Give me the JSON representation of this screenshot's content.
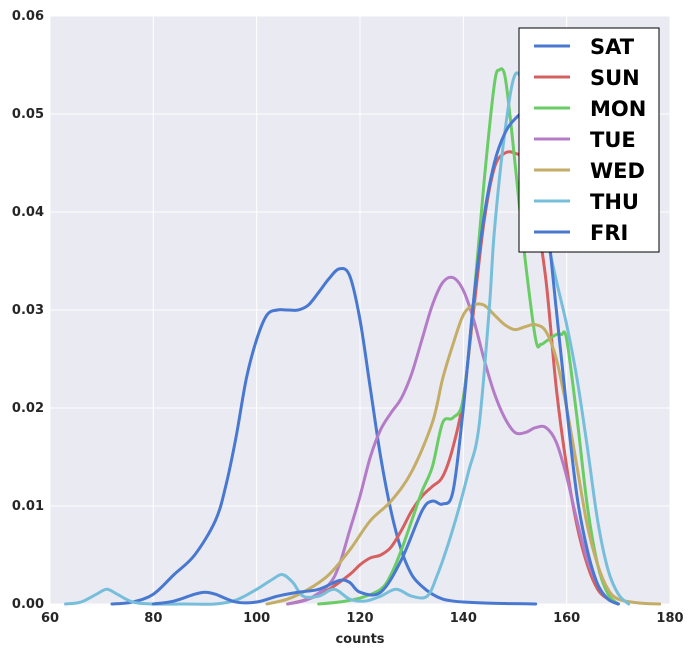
{
  "chart_data": {
    "type": "line",
    "title": "",
    "xlabel": "counts",
    "ylabel": "",
    "xlim": [
      60,
      180
    ],
    "ylim": [
      0,
      0.06
    ],
    "x_ticks": [
      60,
      80,
      100,
      120,
      140,
      160,
      180
    ],
    "y_ticks": [
      0.0,
      0.01,
      0.02,
      0.03,
      0.04,
      0.05,
      0.06
    ],
    "x_tick_labels": [
      "60",
      "80",
      "100",
      "120",
      "140",
      "160",
      "180"
    ],
    "y_tick_labels": [
      "0.00",
      "0.01",
      "0.02",
      "0.03",
      "0.04",
      "0.05",
      "0.06"
    ],
    "grid": true,
    "legend_position": "top-right",
    "series": [
      {
        "name": "SAT",
        "color": "#4878cf",
        "x": [
          72,
          76,
          80,
          84,
          88,
          92,
          94,
          96,
          98,
          100,
          102,
          104,
          106,
          108,
          110,
          112,
          114,
          116,
          118,
          120,
          122,
          124,
          126,
          128,
          130,
          132,
          134,
          136,
          138,
          140,
          144,
          148,
          152,
          154
        ],
        "y": [
          0.0,
          0.0002,
          0.001,
          0.003,
          0.005,
          0.0085,
          0.012,
          0.017,
          0.023,
          0.027,
          0.0295,
          0.03,
          0.03,
          0.03,
          0.0305,
          0.0318,
          0.0332,
          0.0342,
          0.0335,
          0.029,
          0.022,
          0.015,
          0.0095,
          0.0055,
          0.003,
          0.0018,
          0.001,
          0.0005,
          0.0003,
          0.0002,
          0.0001,
          5e-05,
          2e-05,
          0.0
        ]
      },
      {
        "name": "SUN",
        "color": "#d65f5f",
        "x": [
          106,
          110,
          114,
          118,
          120,
          122,
          124,
          126,
          128,
          130,
          132,
          134,
          136,
          138,
          140,
          142,
          144,
          146,
          148,
          150,
          152,
          154,
          156,
          158,
          160,
          162,
          164,
          166,
          168,
          170
        ],
        "y": [
          0.0,
          0.0005,
          0.0015,
          0.003,
          0.004,
          0.0047,
          0.005,
          0.0058,
          0.0075,
          0.0095,
          0.011,
          0.012,
          0.013,
          0.016,
          0.021,
          0.03,
          0.039,
          0.0445,
          0.046,
          0.046,
          0.045,
          0.04,
          0.033,
          0.022,
          0.014,
          0.008,
          0.004,
          0.0015,
          0.0005,
          0.0
        ]
      },
      {
        "name": "MON",
        "color": "#6acc65",
        "x": [
          112,
          116,
          120,
          124,
          126,
          128,
          130,
          132,
          134,
          136,
          138,
          140,
          142,
          144,
          146,
          147,
          148,
          149,
          150,
          152,
          154,
          155,
          156,
          158,
          159,
          160,
          162,
          164,
          166,
          168,
          170
        ],
        "y": [
          0.0,
          0.0002,
          0.0006,
          0.0015,
          0.003,
          0.0055,
          0.0085,
          0.0115,
          0.014,
          0.0185,
          0.019,
          0.021,
          0.031,
          0.043,
          0.053,
          0.0545,
          0.054,
          0.05,
          0.045,
          0.035,
          0.027,
          0.0265,
          0.0268,
          0.0275,
          0.0275,
          0.027,
          0.019,
          0.01,
          0.004,
          0.001,
          0.0
        ]
      },
      {
        "name": "TUE",
        "color": "#b47cc7",
        "x": [
          106,
          110,
          114,
          116,
          118,
          120,
          122,
          124,
          126,
          128,
          130,
          132,
          134,
          136,
          138,
          140,
          142,
          144,
          146,
          148,
          150,
          152,
          154,
          156,
          158,
          160,
          162,
          164,
          166,
          168,
          170
        ],
        "y": [
          0.0,
          0.0005,
          0.002,
          0.004,
          0.0075,
          0.011,
          0.015,
          0.0178,
          0.0195,
          0.021,
          0.0235,
          0.027,
          0.0305,
          0.0328,
          0.0333,
          0.032,
          0.029,
          0.025,
          0.0215,
          0.019,
          0.0175,
          0.0175,
          0.018,
          0.018,
          0.0165,
          0.013,
          0.0085,
          0.0045,
          0.002,
          0.0005,
          0.0
        ]
      },
      {
        "name": "WED",
        "color": "#c4ad66",
        "x": [
          102,
          106,
          110,
          114,
          118,
          122,
          126,
          130,
          134,
          136,
          138,
          140,
          142,
          144,
          146,
          148,
          150,
          152,
          154,
          156,
          158,
          160,
          162,
          164,
          166,
          168,
          170,
          174,
          178
        ],
        "y": [
          0.0,
          0.0005,
          0.0015,
          0.003,
          0.0055,
          0.0085,
          0.0105,
          0.0135,
          0.0185,
          0.023,
          0.0265,
          0.0295,
          0.0305,
          0.0305,
          0.0295,
          0.0285,
          0.028,
          0.0283,
          0.0285,
          0.0278,
          0.025,
          0.02,
          0.014,
          0.008,
          0.004,
          0.0015,
          0.0005,
          0.0001,
          0.0
        ]
      },
      {
        "name": "THU",
        "color": "#77bedb",
        "x": [
          63,
          66,
          69,
          71,
          73,
          76,
          80,
          86,
          92,
          96,
          100,
          103,
          105,
          107,
          109,
          112,
          115,
          118,
          121,
          124,
          127,
          130,
          133,
          135,
          137,
          139,
          141,
          143,
          145,
          146,
          148,
          150,
          152,
          154,
          156,
          158,
          160,
          162,
          164,
          166,
          168,
          170,
          172
        ],
        "y": [
          0.0,
          0.0002,
          0.001,
          0.0015,
          0.001,
          0.0002,
          0.0,
          0.0,
          0.0,
          0.0004,
          0.0015,
          0.0025,
          0.003,
          0.0022,
          0.0008,
          0.0008,
          0.0015,
          0.0005,
          0.0003,
          0.0008,
          0.0015,
          0.0008,
          0.0008,
          0.003,
          0.006,
          0.0095,
          0.0135,
          0.018,
          0.03,
          0.038,
          0.048,
          0.054,
          0.052,
          0.045,
          0.038,
          0.033,
          0.0285,
          0.023,
          0.016,
          0.0085,
          0.0035,
          0.001,
          0.0
        ]
      },
      {
        "name": "FRI",
        "color": "#4878cf",
        "x": [
          80,
          84,
          88,
          90,
          92,
          96,
          100,
          104,
          108,
          112,
          116,
          118,
          120,
          124,
          128,
          132,
          134,
          136,
          138,
          140,
          142,
          144,
          146,
          148,
          150,
          152,
          154,
          156,
          158,
          160,
          162,
          164,
          166,
          168,
          170
        ],
        "y": [
          0.0,
          0.0003,
          0.001,
          0.0012,
          0.001,
          0.0002,
          0.0002,
          0.0008,
          0.0012,
          0.0015,
          0.0024,
          0.0022,
          0.0012,
          0.0012,
          0.0045,
          0.0095,
          0.0105,
          0.0102,
          0.0115,
          0.02,
          0.031,
          0.0395,
          0.045,
          0.048,
          0.0495,
          0.05,
          0.0475,
          0.04,
          0.03,
          0.02,
          0.011,
          0.0055,
          0.002,
          0.0005,
          0.0
        ]
      }
    ]
  }
}
